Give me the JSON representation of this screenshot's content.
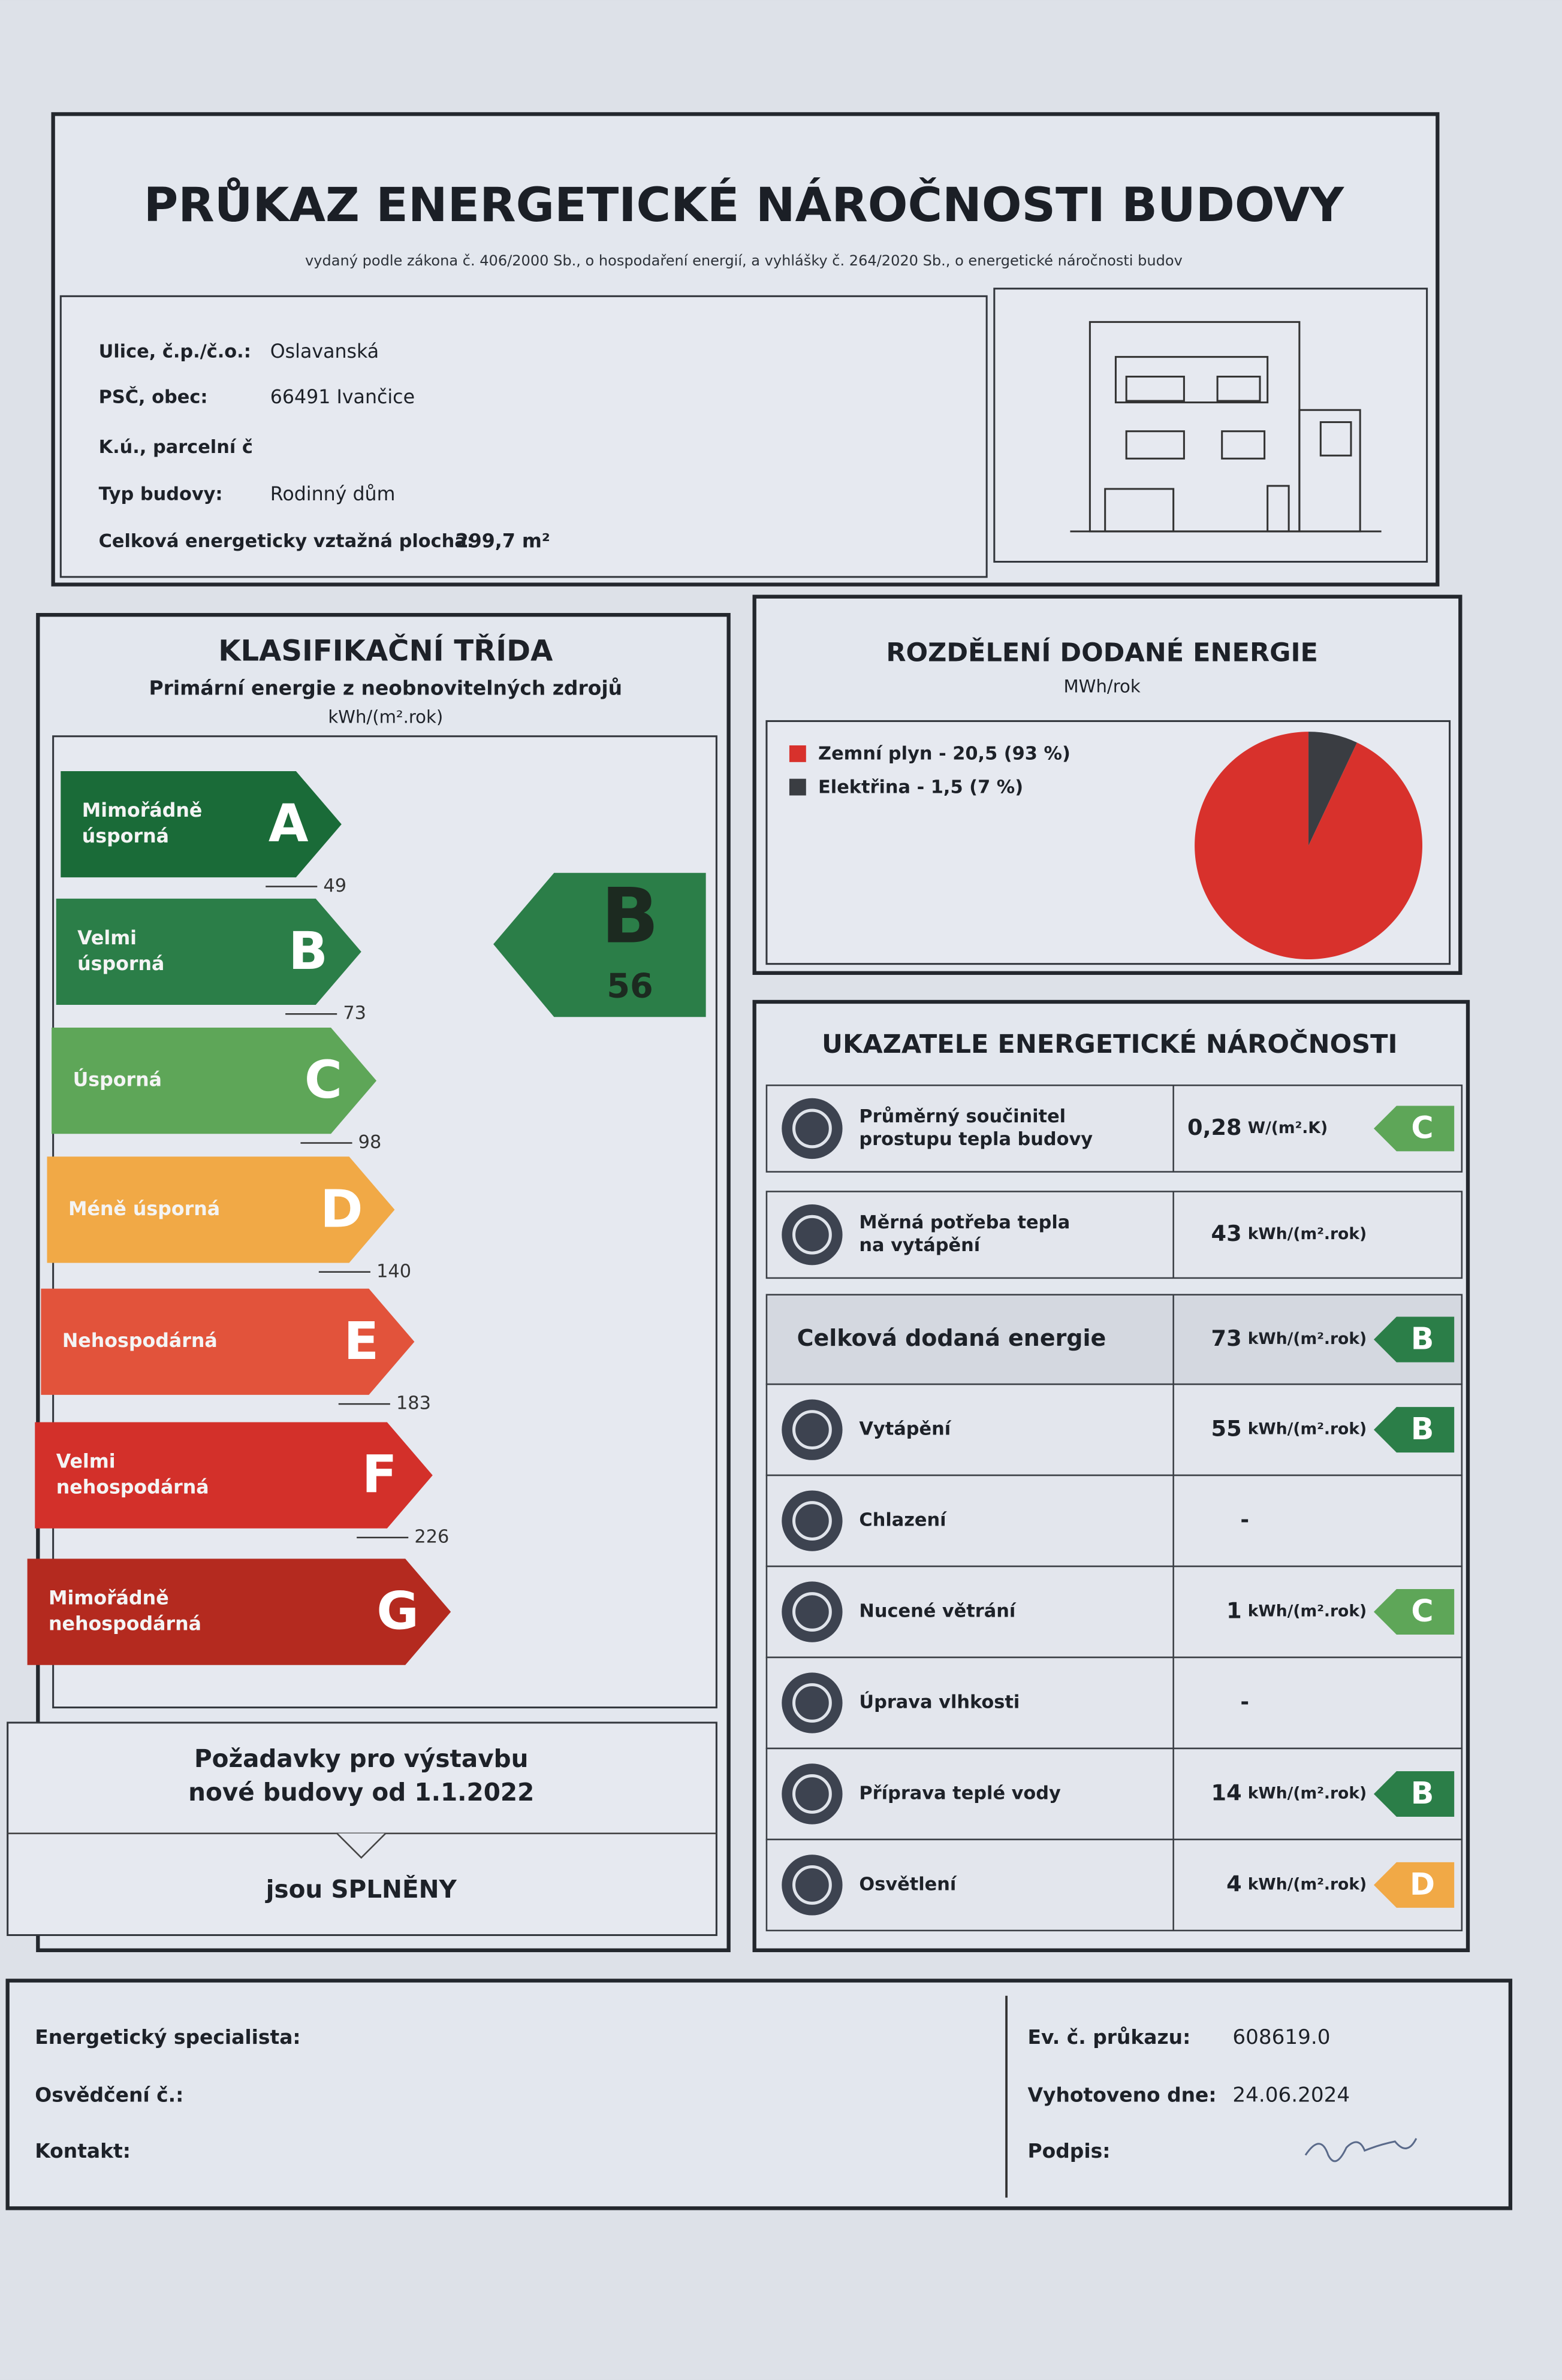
{
  "header": {
    "title": "PRŮKAZ ENERGETICKÉ NÁROČNOSTI BUDOVY",
    "subtitle": "vydaný podle zákona č. 406/2000 Sb., o hospodaření energií, a vyhlášky č. 264/2020 Sb., o energetické náročnosti budov"
  },
  "building": {
    "rows": [
      {
        "label": "Ulice, č.p./č.o.:",
        "value": "Oslavanská"
      },
      {
        "label": "PSČ, obec:",
        "value": "66491 Ivančice"
      },
      {
        "label": "K.ú., parcelní č"
      },
      {
        "label": "Typ budovy:",
        "value": "Rodinný dům"
      },
      {
        "label": "Celková energeticky vztažná plocha:",
        "value": "299,7 m²"
      }
    ]
  },
  "classification": {
    "title": "KLASIFIKAČNÍ TŘÍDA",
    "subtitle": "Primární energie z neobnovitelných zdrojů",
    "unit": "kWh/(m².rok)",
    "classes": [
      {
        "letter": "A",
        "name": [
          "Mimořádně",
          "úsporná"
        ],
        "color": "#1a6b38"
      },
      {
        "letter": "B",
        "name": [
          "Velmi",
          "úsporná"
        ],
        "color": "#2b7e48"
      },
      {
        "letter": "C",
        "name": [
          "Úsporná"
        ],
        "color": "#5ea658"
      },
      {
        "letter": "D",
        "name": [
          "Méně úsporná"
        ],
        "color": "#f1a946"
      },
      {
        "letter": "E",
        "name": [
          "Nehospodárná"
        ],
        "color": "#e2533b"
      },
      {
        "letter": "F",
        "name": [
          "Velmi",
          "nehospodárná"
        ],
        "color": "#d3302a"
      },
      {
        "letter": "G",
        "name": [
          "Mimořádně",
          "nehospodárná"
        ],
        "color": "#b42a1f"
      }
    ],
    "thresholds": [
      49,
      73,
      98,
      140,
      183,
      226
    ],
    "current": {
      "letter": "B",
      "value": 56
    },
    "requirement": {
      "lines": [
        "Požadavky pro výstavbu",
        "nové budovy od 1.1.2022"
      ],
      "result": "jsou SPLNĚNY"
    }
  },
  "energy_split": {
    "title": "ROZDĚLENÍ DODANÉ ENERGIE",
    "unit": "MWh/rok",
    "items": [
      {
        "label": "Zemní plyn - 20,5 (93 %)",
        "share": 93,
        "color": "#d8312c"
      },
      {
        "label": "Elektřina - 1,5 (7 %)",
        "share": 7,
        "color": "#3a3d42"
      }
    ]
  },
  "indicators": {
    "title": "UKAZATELE ENERGETICKÉ NÁROČNOSTI",
    "rows": [
      {
        "label": [
          "Průměrný součinitel",
          "prostupu tepla budovy"
        ],
        "value": "0,28",
        "unit": "W/(m².K)",
        "class": "C"
      },
      {
        "label": [
          "Měrná potřeba tepla",
          "na vytápění"
        ],
        "value": "43",
        "unit": "kWh/(m².rok)"
      },
      {
        "label": [
          "Celková dodaná energie"
        ],
        "value": "73",
        "unit": "kWh/(m².rok)",
        "class": "B"
      },
      {
        "label": [
          "Vytápění"
        ],
        "value": "55",
        "unit": "kWh/(m².rok)",
        "class": "B"
      },
      {
        "label": [
          "Chlazení"
        ],
        "value": "-"
      },
      {
        "label": [
          "Nucené větrání"
        ],
        "value": "1",
        "unit": "kWh/(m².rok)",
        "class": "C"
      },
      {
        "label": [
          "Úprava vlhkosti"
        ],
        "value": "-"
      },
      {
        "label": [
          "Příprava teplé vody"
        ],
        "value": "14",
        "unit": "kWh/(m².rok)",
        "class": "B"
      },
      {
        "label": [
          "Osvětlení"
        ],
        "value": "4",
        "unit": "kWh/(m².rok)",
        "class": "D"
      }
    ]
  },
  "footer": {
    "left": [
      "Energetický specialista:",
      "Osvědčení č.:",
      "Kontakt:"
    ],
    "right": [
      {
        "label": "Ev. č. průkazu:",
        "value": "608619.0"
      },
      {
        "label": "Vyhotoveno dne:",
        "value": "24.06.2024"
      },
      {
        "label": "Podpis:"
      }
    ]
  }
}
